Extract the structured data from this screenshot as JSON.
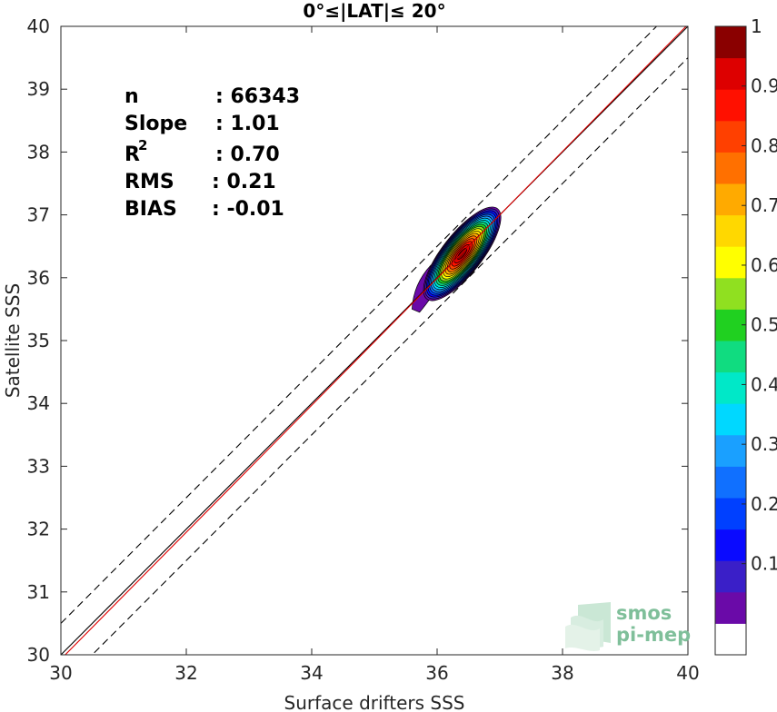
{
  "chart_data": {
    "type": "heatmap",
    "title": "0°≤|LAT|≤ 20°",
    "xlabel": "Surface drifters SSS",
    "ylabel": "Satellite SSS",
    "xlim": [
      30,
      40
    ],
    "ylim": [
      30,
      40
    ],
    "x_ticks": [
      "30",
      "32",
      "34",
      "36",
      "38",
      "40"
    ],
    "y_ticks": [
      "30",
      "31",
      "32",
      "33",
      "34",
      "35",
      "36",
      "37",
      "38",
      "39",
      "40"
    ],
    "stats": [
      {
        "label": "n",
        "value": ": 66343"
      },
      {
        "label": "Slope",
        "value": ": 1.01"
      },
      {
        "label": "R",
        "sup": "2",
        "value": ": 0.70"
      },
      {
        "label": "RMS",
        "value": ": 0.21"
      },
      {
        "label": "BIAS",
        "value": ": -0.01"
      }
    ],
    "lines": [
      {
        "name": "identity",
        "color": "#000000",
        "style": "solid",
        "x": [
          30,
          40
        ],
        "y": [
          30,
          40
        ]
      },
      {
        "name": "identity +0.5",
        "color": "#000000",
        "style": "dashed",
        "x": [
          30,
          40
        ],
        "y": [
          30.5,
          40.5
        ]
      },
      {
        "name": "identity -0.5",
        "color": "#000000",
        "style": "dashed",
        "x": [
          30,
          40
        ],
        "y": [
          29.5,
          39.5
        ]
      },
      {
        "name": "regression",
        "color": "#e00000",
        "style": "solid",
        "slope": 1.01,
        "intercept": -0.37
      }
    ],
    "density": {
      "center": [
        36.4,
        36.38
      ],
      "levels": [
        0.05,
        0.1,
        0.15,
        0.2,
        0.25,
        0.3,
        0.35,
        0.4,
        0.45,
        0.5,
        0.55,
        0.6,
        0.65,
        0.7,
        0.75,
        0.8,
        0.85,
        0.9,
        0.95
      ]
    },
    "colorbar": {
      "ticks": [
        "0.1",
        "0.2",
        "0.3",
        "0.4",
        "0.5",
        "0.6",
        "0.7",
        "0.8",
        "0.9",
        "1"
      ],
      "range": [
        0,
        1
      ],
      "colors": [
        "#ffffff",
        "#6a0aa8",
        "#3a1fc8",
        "#0a0aff",
        "#0040ff",
        "#1070ff",
        "#1aa0ff",
        "#00d8ff",
        "#00e8c8",
        "#10dc80",
        "#20d020",
        "#90e020",
        "#ffff00",
        "#ffd800",
        "#ffaa00",
        "#ff7000",
        "#ff4000",
        "#ff1000",
        "#dd0000",
        "#8a0000"
      ]
    },
    "grid": false,
    "legend": "none"
  },
  "logo": {
    "line1": "smos",
    "line2": "pi-mep"
  }
}
